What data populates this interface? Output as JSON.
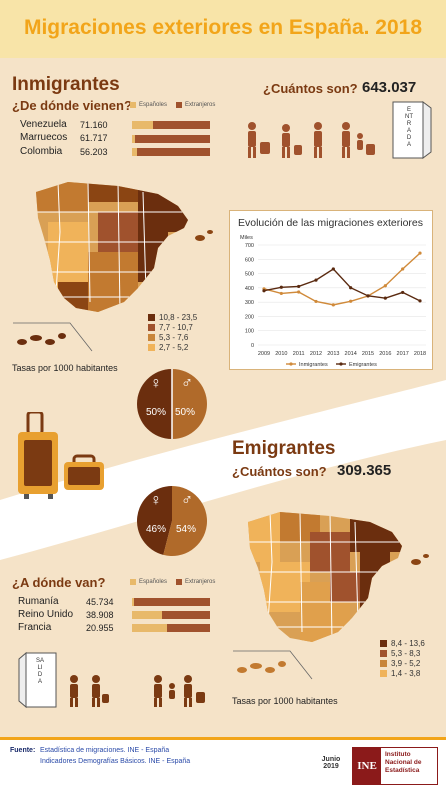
{
  "title": "Migraciones exteriores en España. 2018",
  "immigrants": {
    "heading": "Inmigrantes",
    "origin_question": "¿De dónde vienen?",
    "legend_spanish": "Españoles",
    "legend_foreign": "Extranjeros",
    "count_question": "¿Cuántos son?",
    "count": "643.037",
    "door_word": "ENTRADA",
    "countries": [
      {
        "name": "Venezuela",
        "value": "71.160",
        "spanish_share": 0.27
      },
      {
        "name": "Marruecos",
        "value": "61.717",
        "spanish_share": 0.04
      },
      {
        "name": "Colombia",
        "value": "56.203",
        "spanish_share": 0.06
      }
    ],
    "map_legend": [
      "10,8 - 23,5",
      "7,7 - 10,7",
      "5,3 - 7,6",
      "2,7 - 5,2"
    ],
    "map_caption": "Tasas por 1000 habitantes",
    "gender": {
      "female": "50%",
      "male": "50%",
      "female_symbol": "♀",
      "male_symbol": "♂"
    }
  },
  "emigrants": {
    "heading": "Emigrantes",
    "count_question": "¿Cuántos son?",
    "count": "309.365",
    "dest_question": "¿A dónde van?",
    "legend_spanish": "Españoles",
    "legend_foreign": "Extranjeros",
    "door_word": "SALIDA",
    "countries": [
      {
        "name": "Rumanía",
        "value": "45.734",
        "spanish_share": 0.02
      },
      {
        "name": "Reino Unido",
        "value": "38.908",
        "spanish_share": 0.38
      },
      {
        "name": "Francia",
        "value": "20.955",
        "spanish_share": 0.45
      }
    ],
    "map_legend": [
      "8,4 - 13,6",
      "5,3 - 8,3",
      "3,9 - 5,2",
      "1,4 - 3,8"
    ],
    "map_caption": "Tasas por 1000 habitantes",
    "gender": {
      "female": "46%",
      "male": "54%",
      "female_symbol": "♀",
      "male_symbol": "♂"
    }
  },
  "colors": {
    "dark_brown": "#6b2e0e",
    "brown": "#a0522d",
    "tan": "#c8853a",
    "light": "#f0b35a",
    "title_orange": "#f2a51a",
    "bg_beige": "#f5e3c8"
  },
  "chart_data": {
    "type": "line",
    "title": "Evolución de las migraciones exteriores",
    "ylabel": "Miles",
    "ylim": [
      0,
      700
    ],
    "yticks": [
      "0",
      "100",
      "200",
      "300",
      "400",
      "500",
      "600",
      "700"
    ],
    "x": [
      "2009",
      "2010",
      "2011",
      "2012",
      "2013",
      "2014",
      "2015",
      "2016",
      "2017",
      "2018"
    ],
    "series": [
      {
        "name": "Inmigrantes",
        "color": "#d08a3a",
        "values": [
          393,
          361,
          371,
          305,
          281,
          306,
          343,
          415,
          532,
          643
        ]
      },
      {
        "name": "Emigrantes",
        "color": "#5a2a10",
        "values": [
          380,
          404,
          410,
          454,
          532,
          401,
          344,
          328,
          368,
          309
        ]
      }
    ]
  },
  "footer": {
    "label": "Fuente:",
    "source1": "Estadística de migraciones. INE - España",
    "source2": "Indicadores Demografías Básicos. INE - España",
    "date_month": "Junio",
    "date_year": "2019",
    "logo_text": "INE",
    "institute": [
      "Instituto",
      "Nacional de",
      "Estadística"
    ]
  }
}
